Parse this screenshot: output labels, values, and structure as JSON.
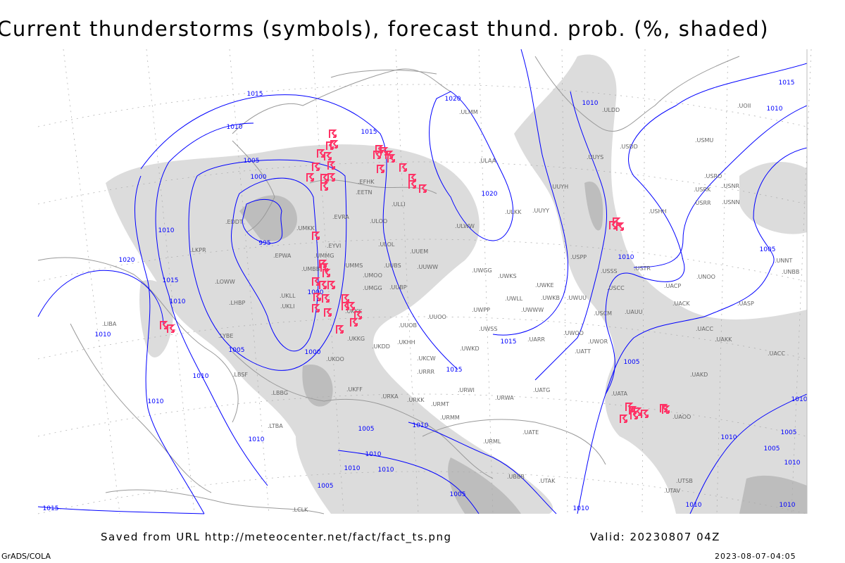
{
  "title": "Current thunderstorms (symbols), forecast thund. prob. (%, shaded)",
  "footer": {
    "source": "Saved from URL http://meteocenter.net/fact/fact_ts.png",
    "valid": "Valid: 20230807 04Z",
    "software": "GrADS/COLA",
    "timestamp": "2023-08-07-04:05"
  },
  "colors": {
    "isobar": "#0000ff",
    "thunderstorm_symbol": "#ff3366",
    "coastline": "#999999",
    "shading_light": "#dcdcdc",
    "shading_dark": "#bdbdbd"
  },
  "icons": {
    "thunderstorm": "thunderstorm-symbol-icon"
  },
  "isobar_labels": [
    "1015",
    "1010",
    "1005",
    "1000",
    "995",
    "1000",
    "1000",
    "1005",
    "1010",
    "1015",
    "1020",
    "1015",
    "1020",
    "1020",
    "1010",
    "1015",
    "1010",
    "1010",
    "1005",
    "1010",
    "1015",
    "1010",
    "1005",
    "1010",
    "1010",
    "1005",
    "1005",
    "1010",
    "1010",
    "1010",
    "1010",
    "1015",
    "1010",
    "1010",
    "1010",
    "1005",
    "1005",
    "1010",
    "1010",
    "1015",
    "1010",
    "1010",
    "1005"
  ],
  "stations": [
    "ULMM",
    "ULAA",
    "ULDD",
    "USDD",
    "USMU",
    "UOII",
    "UUYS",
    "USRO",
    "USRK",
    "USNR",
    "USRR",
    "USNN",
    "USHH",
    "UUYH",
    "ULKK",
    "UUYY",
    "ULWW",
    "USPP",
    "USTR",
    "USSS",
    "USCC",
    "UNOO",
    "UACP",
    "UNNT",
    "UNBB",
    "UACK",
    "UASP",
    "UAUU",
    "USCM",
    "UACC",
    "UAKK",
    "UWOO",
    "UWOR",
    "UATT",
    "UARR",
    "UWSS",
    "UWKS",
    "UWGG",
    "UWKE",
    "UWLL",
    "UWKB",
    "UWUU",
    "UWWW",
    "UWPP",
    "UUOO",
    "UUEM",
    "UUWW",
    "UUBS",
    "UUBP",
    "UUOB",
    "ULOL",
    "ULOO",
    "ULLI",
    "EFHK",
    "EETN",
    "EVRA",
    "UMKK",
    "EYVI",
    "UMMG",
    "UMMS",
    "UMOO",
    "UMBB",
    "EPWA",
    "UMGG",
    "UKLL",
    "UKLI",
    "UKKK",
    "UKKG",
    "UKDD",
    "UKHH",
    "UKOO",
    "UKFF",
    "URKA",
    "URKK",
    "URRR",
    "UKCW",
    "URWI",
    "URMT",
    "URMM",
    "URWA",
    "UATG",
    "URML",
    "UBBB",
    "UTAK",
    "UATE",
    "UATA",
    "UAOO",
    "UAKD",
    "UTAV",
    "UTSB",
    "EDDT",
    "LKPR",
    "LOWW",
    "LHBP",
    "LYBE",
    "LBSF",
    "LBBG",
    "LIBA",
    "LTBA",
    "LCLK",
    "UWKD",
    "UACC"
  ]
}
